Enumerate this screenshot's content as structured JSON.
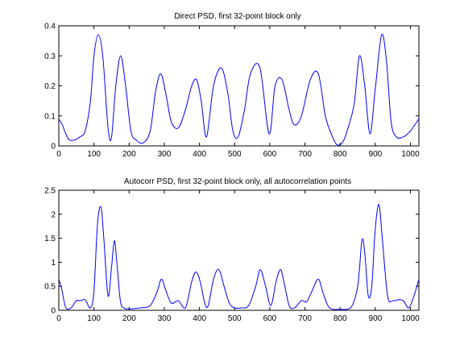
{
  "chart_data": [
    {
      "type": "line",
      "title": "Direct PSD, first 32-point block only",
      "xlabel": "",
      "ylabel": "",
      "xlim": [
        0,
        1024
      ],
      "ylim": [
        0,
        0.4
      ],
      "xticks": [
        0,
        100,
        200,
        300,
        400,
        500,
        600,
        700,
        800,
        900,
        1000
      ],
      "yticks": [
        0,
        0.1,
        0.2,
        0.3,
        0.4
      ],
      "xtick_labels": [
        "0",
        "100",
        "200",
        "300",
        "400",
        "500",
        "600",
        "700",
        "800",
        "900",
        "1000"
      ],
      "ytick_labels": [
        "0",
        "0.1",
        "0.2",
        "0.3",
        "0.4"
      ],
      "grid": false,
      "legend": "none",
      "line_color": "#0000ff",
      "series": [
        {
          "x": [
            0,
            10,
            20,
            30,
            45,
            60,
            75,
            90,
            100,
            112,
            125,
            140,
            150,
            162,
            176,
            190,
            205,
            220,
            240,
            260,
            275,
            290,
            305,
            320,
            340,
            360,
            378,
            392,
            405,
            420,
            440,
            462,
            480,
            495,
            510,
            528,
            545,
            572,
            598,
            615,
            635,
            655,
            670,
            690,
            715,
            738,
            758,
            775,
            790,
            806,
            820,
            840,
            855,
            870,
            885,
            900,
            918,
            932,
            945,
            960,
            980,
            1000,
            1024
          ],
          "y": [
            0.09,
            0.07,
            0.04,
            0.02,
            0.02,
            0.03,
            0.05,
            0.15,
            0.3,
            0.37,
            0.3,
            0.06,
            0.03,
            0.2,
            0.3,
            0.2,
            0.05,
            0.02,
            0.01,
            0.05,
            0.18,
            0.24,
            0.17,
            0.08,
            0.06,
            0.12,
            0.2,
            0.22,
            0.15,
            0.03,
            0.2,
            0.26,
            0.18,
            0.05,
            0.03,
            0.12,
            0.24,
            0.26,
            0.04,
            0.2,
            0.22,
            0.12,
            0.07,
            0.1,
            0.22,
            0.24,
            0.1,
            0.04,
            0.005,
            0.01,
            0.05,
            0.14,
            0.3,
            0.2,
            0.04,
            0.19,
            0.37,
            0.28,
            0.08,
            0.03,
            0.03,
            0.05,
            0.09
          ]
        }
      ]
    },
    {
      "type": "line",
      "title": "Autocorr PSD, first 32-point block only, all autocorrelation points",
      "xlabel": "",
      "ylabel": "",
      "xlim": [
        0,
        1024
      ],
      "ylim": [
        0,
        2.5
      ],
      "xticks": [
        0,
        100,
        200,
        300,
        400,
        500,
        600,
        700,
        800,
        900,
        1000
      ],
      "yticks": [
        0,
        0.5,
        1,
        1.5,
        2,
        2.5
      ],
      "xtick_labels": [
        "0",
        "100",
        "200",
        "300",
        "400",
        "500",
        "600",
        "700",
        "800",
        "900",
        "1000"
      ],
      "ytick_labels": [
        "0",
        "0.5",
        "1",
        "1.5",
        "2",
        "2.5"
      ],
      "grid": false,
      "legend": "none",
      "line_color": "#0000ff",
      "series": [
        {
          "x": [
            0,
            8,
            20,
            35,
            50,
            62,
            75,
            90,
            100,
            110,
            120,
            128,
            140,
            150,
            158,
            165,
            175,
            185,
            200,
            230,
            260,
            280,
            292,
            305,
            320,
            340,
            360,
            378,
            390,
            402,
            415,
            425,
            440,
            455,
            470,
            485,
            500,
            520,
            540,
            560,
            573,
            588,
            603,
            618,
            630,
            640,
            655,
            670,
            690,
            705,
            720,
            738,
            752,
            770,
            800,
            830,
            850,
            862,
            870,
            880,
            890,
            898,
            906,
            912,
            920,
            935,
            950,
            965,
            980,
            995,
            1010,
            1024
          ],
          "y": [
            0.65,
            0.45,
            0.05,
            0.05,
            0.2,
            0.2,
            0.22,
            0.05,
            0.4,
            1.8,
            2.15,
            1.5,
            0.3,
            0.9,
            1.45,
            1.0,
            0.2,
            0.05,
            0.03,
            0.05,
            0.1,
            0.4,
            0.65,
            0.4,
            0.15,
            0.2,
            0.05,
            0.6,
            0.8,
            0.6,
            0.15,
            0.1,
            0.65,
            0.85,
            0.5,
            0.15,
            0.05,
            0.05,
            0.1,
            0.5,
            0.85,
            0.5,
            0.1,
            0.6,
            0.85,
            0.6,
            0.1,
            0.05,
            0.2,
            0.18,
            0.4,
            0.65,
            0.35,
            0.05,
            0.02,
            0.05,
            0.5,
            1.45,
            1.2,
            0.3,
            0.5,
            1.5,
            2.1,
            2.15,
            1.5,
            0.3,
            0.2,
            0.22,
            0.2,
            0.05,
            0.3,
            0.65
          ]
        }
      ]
    }
  ]
}
